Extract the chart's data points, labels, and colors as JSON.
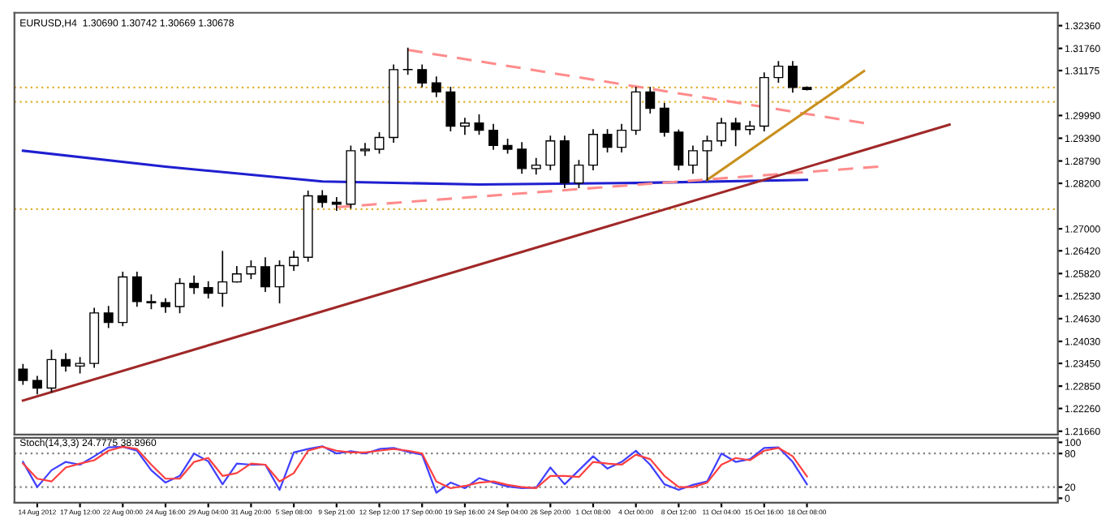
{
  "chart_data": [
    {
      "type": "candlestick",
      "title": "EURUSD,H4  1.30690 1.30742 1.30669 1.30678",
      "categories": [
        null,
        null,
        null,
        null,
        null,
        null,
        null,
        null,
        null,
        null,
        null,
        null,
        null,
        null,
        null,
        null,
        null,
        null,
        null,
        null,
        null,
        null,
        null,
        null,
        null,
        null,
        null,
        null,
        null,
        null,
        null,
        null,
        null,
        null,
        null,
        null,
        null,
        null,
        null,
        null,
        null,
        null,
        null,
        null,
        null,
        null,
        null,
        null,
        null,
        null,
        null,
        null,
        null,
        null,
        null,
        null,
        null,
        null,
        null,
        null,
        null,
        null,
        null,
        null,
        null,
        null,
        null,
        null,
        null,
        null,
        null,
        null,
        null
      ],
      "ohlc": [
        [
          1.233,
          1.2342,
          1.229,
          1.23
        ],
        [
          1.23,
          1.231,
          1.2265,
          1.228
        ],
        [
          1.228,
          1.2379,
          1.227,
          1.2355
        ],
        [
          1.2355,
          1.237,
          1.2325,
          1.2338
        ],
        [
          1.2338,
          1.236,
          1.232,
          1.2345
        ],
        [
          1.2345,
          1.249,
          1.2335,
          1.2478
        ],
        [
          1.2478,
          1.2495,
          1.244,
          1.2453
        ],
        [
          1.2453,
          1.2585,
          1.2445,
          1.2573
        ],
        [
          1.2573,
          1.2585,
          1.2496,
          1.2508
        ],
        [
          1.2508,
          1.2525,
          1.249,
          1.2505
        ],
        [
          1.2505,
          1.2515,
          1.248,
          1.2495
        ],
        [
          1.2495,
          1.2568,
          1.2479,
          1.2556
        ],
        [
          1.2556,
          1.2575,
          1.253,
          1.2545
        ],
        [
          1.2545,
          1.256,
          1.2518,
          1.253
        ],
        [
          1.253,
          1.264,
          1.2496,
          1.256
        ],
        [
          1.256,
          1.26,
          1.256,
          1.2581
        ],
        [
          1.2581,
          1.2615,
          1.2569,
          1.26
        ],
        [
          1.26,
          1.2623,
          1.2535,
          1.2547
        ],
        [
          1.2547,
          1.2615,
          1.2505,
          1.2603
        ],
        [
          1.2603,
          1.264,
          1.2591,
          1.2625
        ],
        [
          1.2625,
          1.2799,
          1.2615,
          1.2787
        ],
        [
          1.2787,
          1.28,
          1.2758,
          1.277
        ],
        [
          1.277,
          1.2782,
          1.2749,
          1.2765
        ],
        [
          1.2765,
          1.2918,
          1.2755,
          1.2906
        ],
        [
          1.2906,
          1.2925,
          1.2894,
          1.291
        ],
        [
          1.291,
          1.2953,
          1.29,
          1.2941
        ],
        [
          1.2941,
          1.3132,
          1.2929,
          1.312
        ],
        [
          1.312,
          1.3176,
          1.3108,
          1.312
        ],
        [
          1.312,
          1.3132,
          1.3075,
          1.3085
        ],
        [
          1.3085,
          1.31,
          1.3049,
          1.3061
        ],
        [
          1.3061,
          1.3073,
          1.2959,
          1.2971
        ],
        [
          1.2971,
          1.2991,
          1.295,
          1.2979
        ],
        [
          1.2979,
          1.3,
          1.295,
          1.296
        ],
        [
          1.296,
          1.2975,
          1.291,
          1.292
        ],
        [
          1.292,
          1.2936,
          1.29,
          1.291
        ],
        [
          1.291,
          1.2927,
          1.2847,
          1.2859
        ],
        [
          1.2859,
          1.2885,
          1.2845,
          1.2868
        ],
        [
          1.2868,
          1.2944,
          1.2856,
          1.2932
        ],
        [
          1.2932,
          1.2944,
          1.2809,
          1.2821
        ],
        [
          1.2821,
          1.288,
          1.2809,
          1.2868
        ],
        [
          1.2868,
          1.2961,
          1.2856,
          1.2949
        ],
        [
          1.2949,
          1.2961,
          1.2903,
          1.2915
        ],
        [
          1.2915,
          1.2975,
          1.2903,
          1.296
        ],
        [
          1.296,
          1.3073,
          1.295,
          1.3061
        ],
        [
          1.3061,
          1.3073,
          1.3006,
          1.3018
        ],
        [
          1.3018,
          1.303,
          1.2945,
          1.2955
        ],
        [
          1.2955,
          1.296,
          1.2856,
          1.2868
        ],
        [
          1.2868,
          1.2918,
          1.2847,
          1.2906
        ],
        [
          1.2906,
          1.2944,
          1.2829,
          1.2932
        ],
        [
          1.2932,
          1.2991,
          1.292,
          1.2979
        ],
        [
          1.2979,
          1.2991,
          1.292,
          1.2962
        ],
        [
          1.2962,
          1.2983,
          1.295,
          1.2971
        ],
        [
          1.2971,
          1.3111,
          1.2959,
          1.3099
        ],
        [
          1.3099,
          1.3141,
          1.3087,
          1.3129
        ],
        [
          1.3129,
          1.3141,
          1.3061,
          1.3073
        ],
        [
          1.3073,
          1.30742,
          1.30669,
          1.30678
        ],
        null,
        null,
        null,
        null,
        null,
        null,
        null,
        null,
        null,
        null,
        null,
        null,
        null,
        null,
        null,
        null,
        null
      ],
      "series": [
        {
          "type": "line",
          "values": [
            1.2906,
            null,
            null,
            null,
            null,
            null,
            null,
            null,
            null,
            null,
            1.2864,
            null,
            null,
            null,
            null,
            null,
            null,
            null,
            null,
            null,
            null,
            1.2825,
            null,
            null,
            null,
            null,
            null,
            null,
            null,
            null,
            null,
            null,
            1.2817,
            null,
            null,
            null,
            null,
            null,
            null,
            null,
            null,
            null,
            null,
            1.2821,
            null,
            null,
            null,
            null,
            null,
            null,
            null,
            null,
            null,
            null,
            null,
            1.2829,
            null,
            null,
            null,
            null,
            null,
            null,
            null,
            null,
            null,
            null,
            null,
            null,
            null,
            null,
            null,
            null,
            null
          ],
          "color": "#1f1fd0",
          "line_style": "solid"
        },
        {
          "type": "line",
          "values": [
            null,
            null,
            null,
            null,
            null,
            null,
            null,
            null,
            null,
            null,
            null,
            null,
            null,
            null,
            null,
            null,
            null,
            null,
            null,
            null,
            null,
            null,
            null,
            null,
            null,
            null,
            null,
            1.3172,
            null,
            null,
            null,
            null,
            null,
            null,
            null,
            null,
            null,
            null,
            null,
            null,
            null,
            null,
            null,
            null,
            null,
            null,
            null,
            null,
            null,
            null,
            null,
            null,
            null,
            null,
            null,
            null,
            null,
            null,
            null,
            1.2979,
            null,
            null,
            null,
            null,
            null,
            null,
            null,
            null,
            null,
            null,
            null,
            null,
            null
          ],
          "color": "#ff8c8c",
          "line_style": "dashed"
        },
        {
          "type": "line",
          "values": [
            null,
            null,
            null,
            null,
            null,
            null,
            null,
            null,
            null,
            null,
            null,
            null,
            null,
            null,
            null,
            null,
            null,
            null,
            null,
            null,
            null,
            null,
            1.2757,
            null,
            null,
            null,
            null,
            null,
            null,
            null,
            null,
            null,
            null,
            null,
            null,
            null,
            null,
            null,
            null,
            null,
            null,
            null,
            null,
            null,
            null,
            null,
            null,
            null,
            null,
            null,
            null,
            null,
            null,
            null,
            null,
            null,
            null,
            null,
            null,
            null,
            1.2864,
            null,
            null,
            null,
            null,
            null,
            null,
            null,
            null,
            null,
            null,
            null,
            null
          ],
          "color": "#ff8c8c",
          "line_style": "dashed"
        },
        {
          "type": "line",
          "values": [
            null,
            null,
            null,
            null,
            null,
            null,
            null,
            null,
            null,
            null,
            null,
            null,
            null,
            null,
            null,
            null,
            null,
            null,
            null,
            null,
            null,
            null,
            null,
            null,
            null,
            null,
            null,
            null,
            null,
            null,
            null,
            null,
            null,
            null,
            null,
            null,
            null,
            null,
            null,
            null,
            null,
            null,
            null,
            null,
            null,
            null,
            null,
            null,
            1.2829,
            null,
            null,
            null,
            null,
            null,
            null,
            null,
            null,
            null,
            null,
            1.3116,
            null,
            null,
            null,
            null,
            null,
            null,
            null,
            null,
            null,
            null,
            null,
            null,
            null
          ],
          "color": "#c8901e",
          "line_style": "solid"
        },
        {
          "type": "line",
          "values": [
            1.2247,
            null,
            null,
            null,
            null,
            null,
            null,
            null,
            null,
            null,
            null,
            null,
            null,
            null,
            null,
            null,
            null,
            null,
            null,
            null,
            null,
            null,
            null,
            null,
            null,
            null,
            null,
            null,
            null,
            null,
            null,
            null,
            null,
            null,
            null,
            null,
            null,
            null,
            null,
            null,
            null,
            null,
            null,
            null,
            null,
            null,
            null,
            null,
            null,
            null,
            null,
            null,
            null,
            null,
            null,
            null,
            null,
            null,
            null,
            null,
            null,
            null,
            null,
            null,
            null,
            1.2975,
            null,
            null,
            null,
            null,
            null,
            null,
            null
          ],
          "color": "#a02828",
          "line_style": "solid"
        }
      ],
      "ref_lines": [
        {
          "axis": "y",
          "value": 1.3073,
          "color": "#e0b030",
          "line_style": "dotted"
        },
        {
          "axis": "y",
          "value": 1.3035,
          "color": "#e0b030",
          "line_style": "dotted"
        },
        {
          "axis": "y",
          "value": 1.2752,
          "color": "#e0b030",
          "line_style": "dotted"
        }
      ],
      "ylim": [
        1.2157,
        1.327
      ],
      "yticks": [
        {
          "value": 1.3236,
          "label": "1.32360"
        },
        {
          "value": 1.3176,
          "label": "1.31760"
        },
        {
          "value": 1.31175,
          "label": "1.31175"
        },
        {
          "value": 1.2999,
          "label": "1.29990"
        },
        {
          "value": 1.2939,
          "label": "1.29390"
        },
        {
          "value": 1.2879,
          "label": "1.28790"
        },
        {
          "value": 1.282,
          "label": "1.28200"
        },
        {
          "value": 1.27,
          "label": "1.27000"
        },
        {
          "value": 1.2642,
          "label": "1.26420"
        },
        {
          "value": 1.2582,
          "label": "1.25820"
        },
        {
          "value": 1.2523,
          "label": "1.25230"
        },
        {
          "value": 1.2463,
          "label": "1.24630"
        },
        {
          "value": 1.2403,
          "label": "1.24030"
        },
        {
          "value": 1.2345,
          "label": "1.23450"
        },
        {
          "value": 1.2285,
          "label": "1.22850"
        },
        {
          "value": 1.2226,
          "label": "1.22260"
        },
        {
          "value": 1.2166,
          "label": "1.21660"
        }
      ],
      "tick_labels": "y",
      "grid": false
    },
    {
      "type": "line",
      "title": "Stoch(14,3,3) 24.7775 38.8960",
      "categories": [
        null,
        "14 Aug 2012",
        null,
        null,
        "17 Aug 12:00",
        null,
        null,
        "22 Aug 00:00",
        null,
        null,
        "24 Aug 16:00",
        null,
        null,
        "29 Aug 04:00",
        null,
        null,
        "31 Aug 20:00",
        null,
        null,
        "5 Sep 08:00",
        null,
        null,
        "9 Sep 21:00",
        null,
        null,
        "12 Sep 12:00",
        null,
        null,
        "17 Sep 00:00",
        null,
        null,
        "19 Sep 16:00",
        null,
        null,
        "24 Sep 04:00",
        null,
        null,
        "26 Sep 20:00",
        null,
        null,
        "1 Oct 08:00",
        null,
        null,
        "4 Oct 00:00",
        null,
        null,
        "8 Oct 12:00",
        null,
        null,
        "11 Oct 04:00",
        null,
        null,
        "15 Oct 16:00",
        null,
        null,
        "18 Oct 08:00",
        null,
        null,
        null,
        null,
        null,
        null,
        null,
        null,
        null,
        null,
        null,
        null,
        null,
        null,
        null,
        null,
        null
      ],
      "series": [
        {
          "values": [
            65,
            20,
            50,
            65,
            60,
            75,
            91,
            92,
            85,
            50,
            28,
            40,
            80,
            66,
            25,
            62,
            60,
            60,
            15,
            82,
            88,
            93,
            80,
            84,
            80,
            88,
            90,
            83,
            78,
            10,
            28,
            18,
            36,
            28,
            21,
            18,
            19,
            55,
            25,
            50,
            75,
            53,
            65,
            85,
            60,
            25,
            15,
            24,
            30,
            80,
            65,
            70,
            90,
            91,
            65,
            25,
            null,
            null,
            null,
            null,
            null,
            null,
            null,
            null,
            null,
            null,
            null,
            null,
            null,
            null,
            null,
            null,
            null
          ],
          "color": "#4040ff",
          "line_style": "solid"
        },
        {
          "values": [
            62,
            35,
            30,
            55,
            62,
            68,
            85,
            92,
            88,
            60,
            35,
            35,
            65,
            72,
            40,
            45,
            62,
            60,
            30,
            45,
            85,
            92,
            85,
            82,
            82,
            85,
            88,
            85,
            80,
            30,
            18,
            22,
            28,
            30,
            24,
            20,
            18,
            40,
            40,
            38,
            65,
            62,
            60,
            78,
            70,
            40,
            20,
            20,
            28,
            60,
            72,
            68,
            85,
            90,
            75,
            39,
            null,
            null,
            null,
            null,
            null,
            null,
            null,
            null,
            null,
            null,
            null,
            null,
            null,
            null,
            null,
            null,
            null
          ],
          "color": "#ff4040",
          "line_style": "solid"
        }
      ],
      "ref_lines": [
        {
          "axis": "y",
          "value": 80,
          "color": "#808080",
          "line_style": "dotted"
        },
        {
          "axis": "y",
          "value": 20,
          "color": "#808080",
          "line_style": "dotted"
        }
      ],
      "ylim": [
        -8,
        108
      ],
      "yticks": [
        100,
        80,
        20,
        0
      ],
      "grid": false
    }
  ]
}
